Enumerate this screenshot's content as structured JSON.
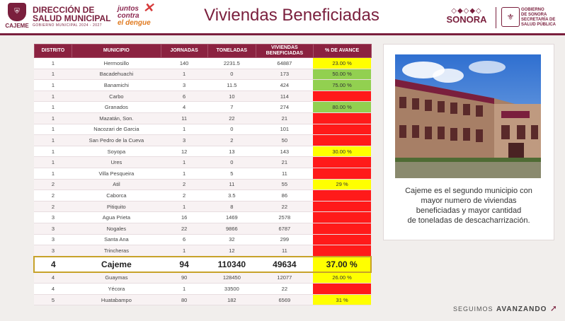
{
  "header": {
    "cajeme": "CAJEME",
    "dept_line1": "DIRECCIÓN DE",
    "dept_line2": "SALUD MUNICIPAL",
    "dept_line3": "GOBIERNO MUNICIPAL 2024 - 2027",
    "campaign_line1": "juntos",
    "campaign_line2": "contra",
    "campaign_line3": "el dengue",
    "title": "Viviendas Beneficiadas",
    "sonora": "SONORA",
    "gob_line1": "GOBIERNO",
    "gob_line2": "DE SONORA",
    "gob_line3": "SECRETARÍA DE",
    "gob_line4": "SALUD PÚBLICA"
  },
  "table": {
    "headers": [
      "DISTRITO",
      "MUNICIPIO",
      "JORNADAS",
      "TONELADAS",
      "VIVIENDAS BENEFICIADAS",
      "% DE AVANCE"
    ],
    "rows": [
      [
        "1",
        "Hermosillo",
        "140",
        "2231.5",
        "64887",
        "23.00 %",
        "yellow"
      ],
      [
        "1",
        "Bacadehuachi",
        "1",
        "0",
        "173",
        "50.00 %",
        "green"
      ],
      [
        "1",
        "Banamichi",
        "3",
        "11.5",
        "424",
        "75.00 %",
        "green"
      ],
      [
        "1",
        "Carbo",
        "6",
        "10",
        "114",
        "",
        "red"
      ],
      [
        "1",
        "Granados",
        "4",
        "7",
        "274",
        "80.00 %",
        "green"
      ],
      [
        "1",
        "Mazatán, Son.",
        "11",
        "22",
        "21",
        "",
        "red"
      ],
      [
        "1",
        "Nacozari de Garcia",
        "1",
        "0",
        "101",
        "",
        "red"
      ],
      [
        "1",
        "San Pedro de la Cueva",
        "3",
        "2",
        "50",
        "",
        "red"
      ],
      [
        "1",
        "Soyopa",
        "12",
        "13",
        "143",
        "30.00 %",
        "yellow"
      ],
      [
        "1",
        "Ures",
        "1",
        "0",
        "21",
        "",
        "red"
      ],
      [
        "1",
        "Villa Pesqueira",
        "1",
        "5",
        "11",
        "",
        "red"
      ],
      [
        "2",
        "Atil",
        "2",
        "11",
        "55",
        "29 %",
        "yellow"
      ],
      [
        "2",
        "Caborca",
        "2",
        "3.5",
        "86",
        "",
        "red"
      ],
      [
        "2",
        "Pitiquito",
        "1",
        "8",
        "22",
        "",
        "red"
      ],
      [
        "3",
        "Agua Prieta",
        "16",
        "1469",
        "2578",
        "",
        "red"
      ],
      [
        "3",
        "Nogales",
        "22",
        "9866",
        "6787",
        "",
        "red"
      ],
      [
        "3",
        "Santa Ana",
        "6",
        "32",
        "299",
        "",
        "red"
      ],
      [
        "3",
        "Trincheras",
        "1",
        "12",
        "11",
        "",
        "red"
      ],
      [
        "4",
        "Cajeme",
        "94",
        "110340",
        "49634",
        "37.00 %",
        "yellow",
        "highlight"
      ],
      [
        "4",
        "Guaymas",
        "90",
        "128450",
        "12077",
        "26.00 %",
        "yellow"
      ],
      [
        "4",
        "Yécora",
        "1",
        "33500",
        "22",
        "",
        "red"
      ],
      [
        "5",
        "Huatabampo",
        "80",
        "182",
        "6569",
        "31 %",
        "yellow"
      ]
    ]
  },
  "card": {
    "caption_line1": "Cajeme es el segundo municipio con",
    "caption_line2": "mayor numero de viviendas",
    "caption_line3": "beneficiadas y mayor cantidad",
    "caption_line4": "de toneladas de descacharrización."
  },
  "footer": {
    "seguimos": "SEGUIMOS",
    "avanzando": "AVANZANDO"
  },
  "colors": {
    "brand": "#7a1f3d",
    "header_row": "#8b2240",
    "yellow": "#ffff00",
    "green": "#92d050",
    "red": "#ff1a1a"
  }
}
